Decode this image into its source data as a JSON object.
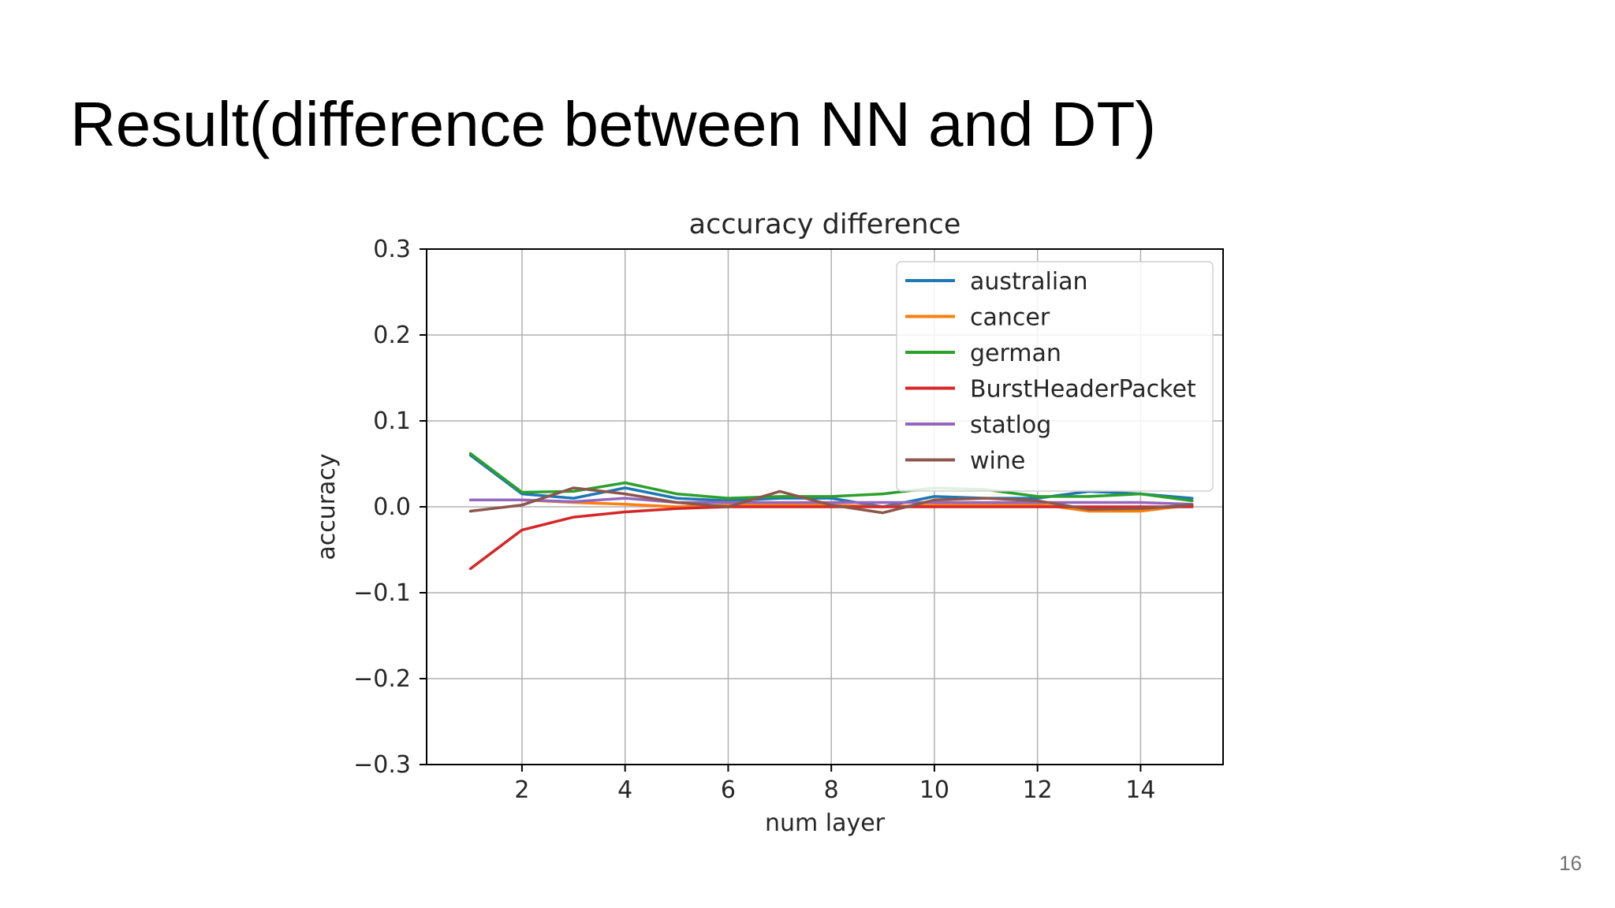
{
  "slide": {
    "title": "Result(difference between NN and DT)",
    "page_number": "16"
  },
  "chart_data": {
    "type": "line",
    "title": "accuracy difference",
    "xlabel": "num layer",
    "ylabel": "accuracy",
    "xlim": [
      0.15,
      15.6
    ],
    "ylim": [
      -0.3,
      0.3
    ],
    "xticks": [
      2,
      4,
      6,
      8,
      10,
      12,
      14
    ],
    "yticks": [
      -0.3,
      -0.2,
      -0.1,
      0.0,
      0.1,
      0.2,
      0.3
    ],
    "ytick_labels": [
      "−0.3",
      "−0.2",
      "−0.1",
      "0.0",
      "0.1",
      "0.2",
      "0.3"
    ],
    "grid": true,
    "legend_position": "top-right",
    "x": [
      1,
      2,
      3,
      4,
      5,
      6,
      7,
      8,
      9,
      10,
      11,
      12,
      13,
      14,
      15
    ],
    "series": [
      {
        "name": "australian",
        "color": "#1f77b4",
        "values": [
          0.06,
          0.015,
          0.01,
          0.022,
          0.01,
          0.007,
          0.01,
          0.01,
          0.0,
          0.012,
          0.01,
          0.01,
          0.018,
          0.015,
          0.01
        ]
      },
      {
        "name": "cancer",
        "color": "#ff7f0e",
        "values": [
          0.008,
          0.008,
          0.005,
          0.003,
          0.0,
          0.002,
          0.002,
          0.002,
          0.0,
          0.002,
          0.002,
          0.003,
          -0.005,
          -0.005,
          0.002
        ]
      },
      {
        "name": "german",
        "color": "#2ca02c",
        "values": [
          0.062,
          0.017,
          0.018,
          0.028,
          0.015,
          0.01,
          0.012,
          0.012,
          0.015,
          0.022,
          0.02,
          0.012,
          0.012,
          0.015,
          0.007
        ]
      },
      {
        "name": "BurstHeaderPacket",
        "color": "#d62728",
        "values": [
          -0.072,
          -0.027,
          -0.012,
          -0.006,
          -0.002,
          0.0,
          0.0,
          0.0,
          0.0,
          0.0,
          0.0,
          0.0,
          0.0,
          0.0,
          0.0
        ]
      },
      {
        "name": "statlog",
        "color": "#9467bd",
        "values": [
          0.008,
          0.008,
          0.006,
          0.01,
          0.005,
          0.005,
          0.005,
          0.005,
          0.005,
          0.005,
          0.005,
          0.005,
          0.005,
          0.005,
          0.003
        ]
      },
      {
        "name": "wine",
        "color": "#8c564b",
        "values": [
          -0.005,
          0.002,
          0.022,
          0.015,
          0.005,
          0.0,
          0.018,
          0.002,
          -0.007,
          0.008,
          0.01,
          0.007,
          -0.003,
          -0.002,
          0.002
        ]
      }
    ]
  }
}
